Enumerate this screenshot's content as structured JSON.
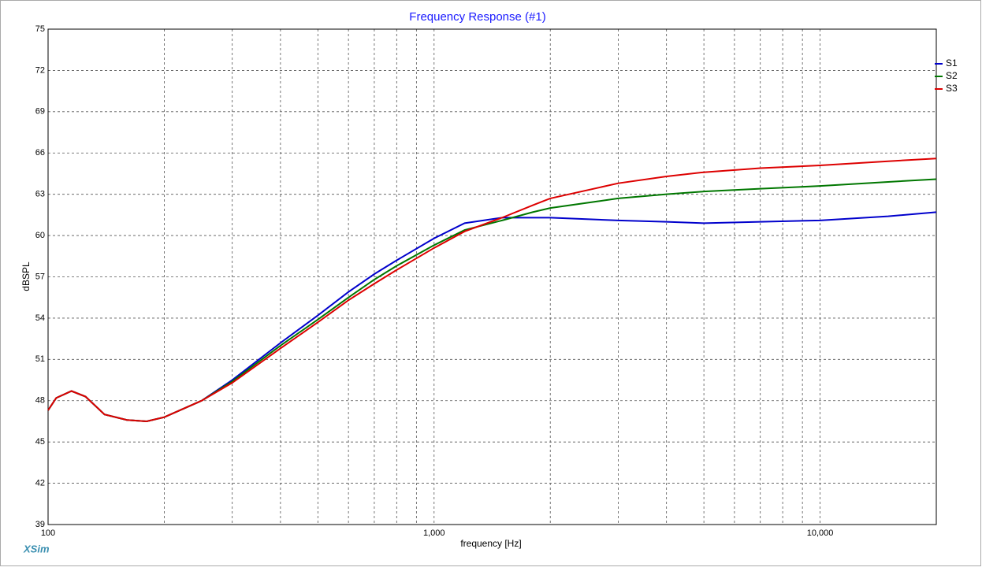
{
  "chart_data": {
    "type": "line",
    "title": "Frequency Response (#1)",
    "x_label": "frequency [Hz]",
    "y_label": "dBSPL",
    "watermark": "XSim",
    "x": [
      100,
      105,
      115,
      125,
      140,
      160,
      180,
      200,
      250,
      300,
      400,
      500,
      600,
      700,
      800,
      1000,
      1200,
      1500,
      1800,
      2000,
      3000,
      4000,
      5000,
      7000,
      10000,
      15000,
      20000
    ],
    "series": [
      {
        "name": "S1",
        "color": "#0000cc",
        "values": [
          47.3,
          48.2,
          48.7,
          48.3,
          47.0,
          46.6,
          46.5,
          46.8,
          48.0,
          49.5,
          52.2,
          54.2,
          55.9,
          57.2,
          58.2,
          59.8,
          60.9,
          61.3,
          61.3,
          61.3,
          61.1,
          61.0,
          60.9,
          61.0,
          61.1,
          61.4,
          61.7
        ]
      },
      {
        "name": "S2",
        "color": "#007700",
        "values": [
          47.3,
          48.2,
          48.7,
          48.3,
          47.0,
          46.6,
          46.5,
          46.8,
          48.0,
          49.4,
          52.0,
          53.9,
          55.5,
          56.8,
          57.8,
          59.3,
          60.4,
          61.1,
          61.7,
          62.0,
          62.7,
          63.0,
          63.2,
          63.4,
          63.6,
          63.9,
          64.1
        ]
      },
      {
        "name": "S3",
        "color": "#dd0000",
        "values": [
          47.3,
          48.2,
          48.7,
          48.3,
          47.0,
          46.6,
          46.5,
          46.8,
          48.0,
          49.3,
          51.8,
          53.7,
          55.3,
          56.5,
          57.5,
          59.1,
          60.3,
          61.3,
          62.2,
          62.7,
          63.8,
          64.3,
          64.6,
          64.9,
          65.1,
          65.4,
          65.6
        ]
      }
    ],
    "x_log": true,
    "xlim": [
      100,
      20000
    ],
    "xticks": [
      100,
      {
        "value": 1000,
        "label": "1,000"
      },
      {
        "value": 10000,
        "label": "10,000"
      }
    ],
    "x_minor_ticks": [
      200,
      300,
      400,
      500,
      600,
      700,
      800,
      900,
      2000,
      3000,
      4000,
      5000,
      6000,
      7000,
      8000,
      9000
    ],
    "ylim": [
      39,
      75
    ],
    "yticks": [
      39,
      42,
      45,
      48,
      51,
      54,
      57,
      60,
      63,
      66,
      69,
      72,
      75
    ],
    "grid": true,
    "legend": "top-right"
  }
}
